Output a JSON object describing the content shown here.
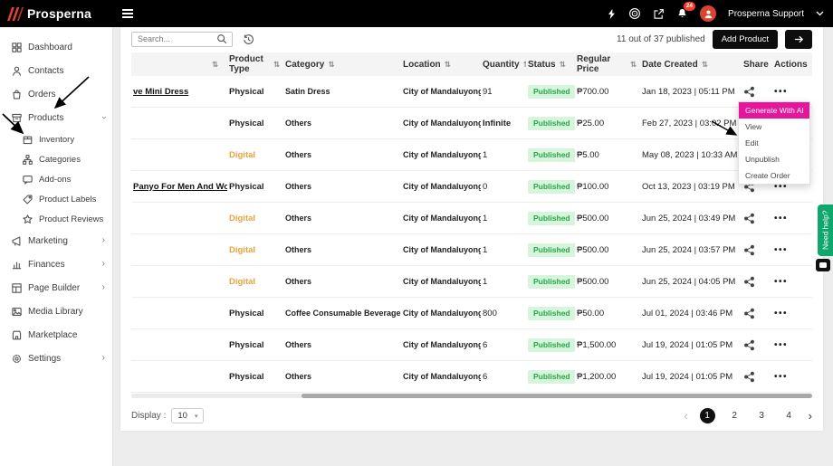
{
  "header": {
    "logo_text": "Prosperna",
    "user_name": "Prosperna Support",
    "notification_count": "24",
    "icons": [
      "hamburger-icon",
      "lightning-icon",
      "target-icon",
      "external-link-icon",
      "bell-icon",
      "avatar",
      "chevron-down-icon"
    ]
  },
  "sidebar": {
    "items": [
      {
        "label": "Dashboard",
        "icon": "dashboard-icon"
      },
      {
        "label": "Contacts",
        "icon": "contacts-icon"
      },
      {
        "label": "Orders",
        "icon": "orders-icon"
      },
      {
        "label": "Products",
        "icon": "products-icon",
        "chevron": "down",
        "children": [
          {
            "label": "Inventory",
            "icon": "inventory-icon"
          },
          {
            "label": "Categories",
            "icon": "categories-icon"
          },
          {
            "label": "Add-ons",
            "icon": "addons-icon"
          },
          {
            "label": "Product Labels",
            "icon": "labels-icon"
          },
          {
            "label": "Product Reviews",
            "icon": "reviews-icon"
          }
        ]
      },
      {
        "label": "Marketing",
        "icon": "marketing-icon",
        "chevron": "right"
      },
      {
        "label": "Finances",
        "icon": "finances-icon",
        "chevron": "right"
      },
      {
        "label": "Page Builder",
        "icon": "page-builder-icon",
        "chevron": "right"
      },
      {
        "label": "Media Library",
        "icon": "media-library-icon"
      },
      {
        "label": "Marketplace",
        "icon": "marketplace-icon"
      },
      {
        "label": "Settings",
        "icon": "settings-icon",
        "chevron": "right"
      }
    ]
  },
  "toolbar": {
    "search_placeholder": "Search...",
    "published_count": "11 out of 37 published",
    "add_product_label": "Add Product"
  },
  "table": {
    "columns": [
      {
        "label": "",
        "sortable": true
      },
      {
        "label": "Product Type",
        "sortable": true
      },
      {
        "label": "Category",
        "sortable": true
      },
      {
        "label": "Location",
        "sortable": true
      },
      {
        "label": "Quantity",
        "sortable": true
      },
      {
        "label": "Status",
        "sortable": true
      },
      {
        "label": "Regular Price",
        "sortable": true
      },
      {
        "label": "Date Created",
        "sortable": true
      },
      {
        "label": "Share",
        "sortable": false
      },
      {
        "label": "Actions",
        "sortable": false
      }
    ],
    "rows": [
      {
        "name": "ve Mini Dress",
        "type": "Physical",
        "category": "Satin Dress",
        "location": "City of Mandaluyong",
        "quantity": "91",
        "status": "Published",
        "price": "₱700.00",
        "date": "Jan 18, 2023 | 05:11 PM"
      },
      {
        "name": "",
        "type": "Physical",
        "category": "Others",
        "location": "City of Mandaluyong",
        "quantity": "Infinite",
        "status": "Published",
        "price": "₱25.00",
        "date": "Feb 27, 2023 | 03:02 PM"
      },
      {
        "name": "",
        "type": "Digital",
        "category": "Others",
        "location": "City of Mandaluyong",
        "quantity": "1",
        "status": "Published",
        "price": "₱5.00",
        "date": "May 08, 2023 | 10:33 AM"
      },
      {
        "name": "Panyo For Men And Women",
        "type": "Physical",
        "category": "Others",
        "location": "City of Mandaluyong",
        "quantity": "0",
        "status": "Published",
        "price": "₱100.00",
        "date": "Oct 13, 2023 | 03:19 PM"
      },
      {
        "name": "",
        "type": "Digital",
        "category": "Others",
        "location": "City of Mandaluyong",
        "quantity": "1",
        "status": "Published",
        "price": "₱500.00",
        "date": "Jun 25, 2024 | 03:49 PM"
      },
      {
        "name": "",
        "type": "Digital",
        "category": "Others",
        "location": "City of Mandaluyong",
        "quantity": "1",
        "status": "Published",
        "price": "₱500.00",
        "date": "Jun 25, 2024 | 03:57 PM"
      },
      {
        "name": "",
        "type": "Digital",
        "category": "Others",
        "location": "City of Mandaluyong",
        "quantity": "1",
        "status": "Published",
        "price": "₱500.00",
        "date": "Jun 25, 2024 | 04:05 PM"
      },
      {
        "name": "",
        "type": "Physical",
        "category": "Coffee Consumable Beverage",
        "location": "City of Mandaluyong",
        "quantity": "800",
        "status": "Published",
        "price": "₱50.00",
        "date": "Jul 01, 2024 | 03:46 PM"
      },
      {
        "name": "",
        "type": "Physical",
        "category": "Others",
        "location": "City of Mandaluyong",
        "quantity": "6",
        "status": "Published",
        "price": "₱1,500.00",
        "date": "Jul 19, 2024 | 01:05 PM"
      },
      {
        "name": "",
        "type": "Physical",
        "category": "Others",
        "location": "City of Mandaluyong",
        "quantity": "6",
        "status": "Published",
        "price": "₱1,200.00",
        "date": "Jul 19, 2024 | 01:05 PM"
      }
    ]
  },
  "context_menu": {
    "items": [
      {
        "label": "Generate With AI",
        "highlighted": true
      },
      {
        "label": "View",
        "highlighted": false
      },
      {
        "label": "Edit",
        "highlighted": false
      },
      {
        "label": "Unpublish",
        "highlighted": false
      },
      {
        "label": "Create Order",
        "highlighted": false
      }
    ]
  },
  "footer": {
    "display_label": "Display :",
    "display_value": "10",
    "pages": [
      "1",
      "2",
      "3",
      "4"
    ],
    "active_page": "1"
  },
  "help_widget": {
    "label": "Need help?"
  },
  "colors": {
    "accent": "#e5169b",
    "pub_bg": "#d6f5dc",
    "pub_text": "#27a844",
    "digital": "#e8a33c",
    "help": "#0fa76b",
    "badge_red": "#ff3b30",
    "brand": "#e8432d"
  }
}
